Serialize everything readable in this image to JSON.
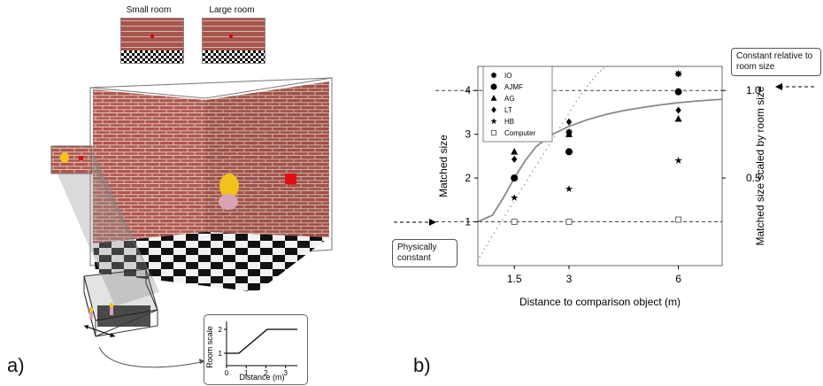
{
  "panel_a": {
    "letter": "a)",
    "small_room_label": "Small room",
    "large_room_label": "Large room",
    "inset": {
      "xlabel": "Distance (m)",
      "ylabel": "Room scale",
      "x_ticks": [
        "0",
        "1",
        "2",
        "3"
      ],
      "y_ticks": [
        "1",
        "2"
      ]
    }
  },
  "panel_b": {
    "letter": "b)",
    "callout_top": "Constant relative to room size",
    "callout_bottom": "Physically constant"
  },
  "chart_data": {
    "type": "scatter",
    "xlabel": "Distance to comparison object (m)",
    "ylabel": "Matched size",
    "ylabel_right": "Matched size scaled by room size",
    "x_ticks": [
      "1.5",
      "3",
      "6"
    ],
    "y_ticks": [
      "1",
      "2",
      "3",
      "4"
    ],
    "y_ticks_right": [
      "0.5",
      "1.0"
    ],
    "xlim": [
      0.5,
      7.2
    ],
    "ylim": [
      0.0,
      4.55
    ],
    "legend_position": "top-left",
    "reference_lines": [
      1,
      4
    ],
    "series": [
      {
        "name": "IO",
        "marker": "gear",
        "x": [
          1.5,
          3,
          6
        ],
        "y": [
          2.0,
          3.05,
          4.38
        ]
      },
      {
        "name": "AJMF",
        "marker": "circle",
        "x": [
          1.5,
          3,
          6
        ],
        "y": [
          2.0,
          2.6,
          3.97
        ]
      },
      {
        "name": "AG",
        "marker": "triangle",
        "x": [
          1.5,
          3,
          6
        ],
        "y": [
          2.6,
          3.0,
          3.35
        ]
      },
      {
        "name": "LT",
        "marker": "diamond",
        "x": [
          1.5,
          3,
          6
        ],
        "y": [
          2.43,
          3.28,
          3.55
        ]
      },
      {
        "name": "HB",
        "marker": "star",
        "x": [
          1.5,
          3,
          6
        ],
        "y": [
          1.55,
          1.75,
          2.4
        ]
      },
      {
        "name": "Computer",
        "marker": "square",
        "x": [
          1.5,
          3,
          6
        ],
        "y": [
          1.0,
          1.0,
          1.05
        ]
      }
    ],
    "model_curve": {
      "x": [
        0.5,
        0.9,
        1.2,
        1.5,
        1.8,
        2.1,
        2.5,
        3.0,
        3.5,
        4.0,
        4.5,
        5.0,
        5.5,
        6.0,
        6.5,
        7.2
      ],
      "y": [
        1.0,
        1.15,
        1.55,
        2.0,
        2.4,
        2.72,
        2.98,
        3.18,
        3.33,
        3.45,
        3.54,
        3.61,
        3.67,
        3.72,
        3.76,
        3.8
      ]
    },
    "dotted_bound": {
      "x": [
        0.55,
        0.8,
        1.1,
        1.4,
        1.7,
        2.0,
        2.3,
        2.6,
        2.9,
        3.2,
        3.5,
        3.8,
        4.1
      ],
      "y": [
        0.2,
        0.55,
        0.95,
        1.35,
        1.75,
        2.15,
        2.55,
        2.95,
        3.35,
        3.75,
        4.1,
        4.4,
        4.6
      ]
    }
  }
}
